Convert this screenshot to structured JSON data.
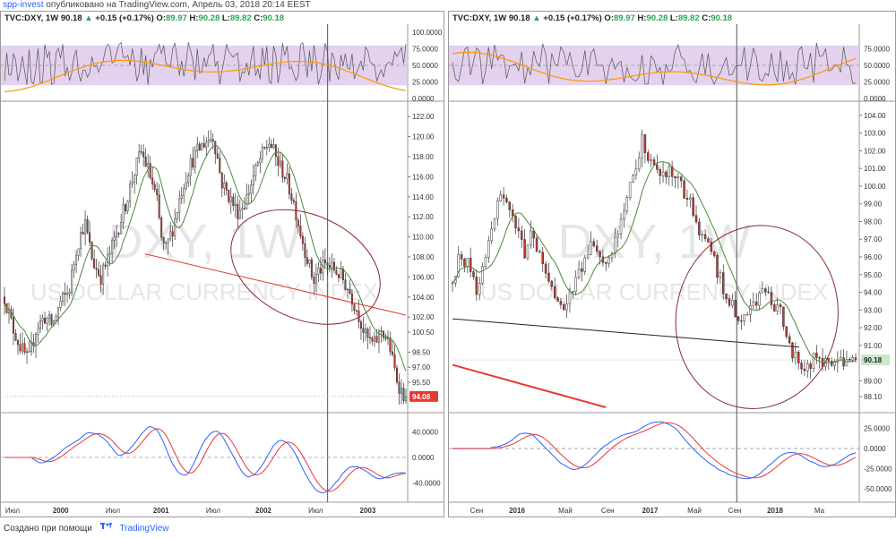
{
  "header": {
    "author": "spp-invest",
    "published": "опубликовано на TradingView.com, Апрель 03, 2018 20:14 EEST"
  },
  "colors": {
    "up": "#ffffff",
    "down": "#c0392b",
    "ma": "#4a8a3a",
    "trendline": "#e53935",
    "ellipse": "#8b2a2a",
    "rsi_band": "#dcc6e8",
    "rsi_line": "#555555",
    "rsi_orange": "#ff9800",
    "macd": "#2962ff",
    "signal": "#e53935",
    "price_label": "#e53935",
    "price_label_right": "#c8e6c9"
  },
  "watermark": {
    "big": "DXY, 1W",
    "small": "US DOLLAR CURRENCY INDEX"
  },
  "footer": {
    "made": "Создано при помощи",
    "brand": "TradingView"
  },
  "chart_data": [
    {
      "id": "left",
      "type": "candlestick",
      "legend": {
        "symbol": "TVC:DXY, 1W",
        "last": "90.18",
        "change": "+0.15 (+0.17%)",
        "o": "89.97",
        "h": "90.28",
        "l": "89.82",
        "c": "90.18"
      },
      "x_ticks": [
        "Июл",
        "2000",
        "Июл",
        "2001",
        "Июл",
        "2002",
        "Июл",
        "2003"
      ],
      "x_tick_pos": [
        0.02,
        0.14,
        0.27,
        0.39,
        0.52,
        0.645,
        0.775,
        0.905
      ],
      "price_ticks": [
        "122.00",
        "120.00",
        "118.00",
        "116.00",
        "114.00",
        "112.00",
        "110.00",
        "108.00",
        "106.00",
        "104.00",
        "102.00",
        "100.50",
        "98.50",
        "97.00",
        "95.50"
      ],
      "price_tick_values": [
        122,
        120,
        118,
        116,
        114,
        112,
        110,
        108,
        106,
        104,
        102,
        100.5,
        98.5,
        97,
        95.5
      ],
      "y_range": [
        93,
        123
      ],
      "last_price_label": "94.08",
      "last_price": 94.08,
      "rsi_ticks": [
        "100.0000",
        "75.0000",
        "50.0000",
        "25.0000",
        "0.0000"
      ],
      "rsi_tick_values": [
        100,
        75,
        50,
        25,
        0
      ],
      "rsi_band": [
        20,
        80
      ],
      "macd_ticks": [
        "40.0000",
        "0.0000",
        "-40.0000"
      ],
      "macd_tick_values": [
        40,
        0,
        -40
      ],
      "macd_range": [
        -65,
        65
      ],
      "close_path": [
        [
          0,
          104
        ],
        [
          0.02,
          101
        ],
        [
          0.04,
          99
        ],
        [
          0.06,
          97.6
        ],
        [
          0.08,
          101
        ],
        [
          0.1,
          102
        ],
        [
          0.12,
          101.2
        ],
        [
          0.14,
          103.5
        ],
        [
          0.16,
          104.5
        ],
        [
          0.18,
          109
        ],
        [
          0.2,
          111.5
        ],
        [
          0.22,
          107.5
        ],
        [
          0.24,
          106
        ],
        [
          0.26,
          108
        ],
        [
          0.28,
          110.5
        ],
        [
          0.3,
          113
        ],
        [
          0.32,
          116
        ],
        [
          0.34,
          118.5
        ],
        [
          0.36,
          116.5
        ],
        [
          0.38,
          113.5
        ],
        [
          0.39,
          110
        ],
        [
          0.4,
          108.5
        ],
        [
          0.42,
          111
        ],
        [
          0.44,
          114.5
        ],
        [
          0.46,
          117
        ],
        [
          0.48,
          118.5
        ],
        [
          0.5,
          119.5
        ],
        [
          0.52,
          120
        ],
        [
          0.53,
          118
        ],
        [
          0.54,
          115.5
        ],
        [
          0.56,
          114
        ],
        [
          0.58,
          112.5
        ],
        [
          0.6,
          113.5
        ],
        [
          0.62,
          116
        ],
        [
          0.64,
          118
        ],
        [
          0.66,
          119.5
        ],
        [
          0.67,
          118.5
        ],
        [
          0.68,
          117.5
        ],
        [
          0.7,
          116
        ],
        [
          0.72,
          113.5
        ],
        [
          0.74,
          110
        ],
        [
          0.76,
          107
        ],
        [
          0.77,
          105.5
        ],
        [
          0.78,
          106.5
        ],
        [
          0.8,
          107.2
        ],
        [
          0.82,
          106.8
        ],
        [
          0.84,
          106
        ],
        [
          0.86,
          104.5
        ],
        [
          0.88,
          102.5
        ],
        [
          0.9,
          100
        ],
        [
          0.92,
          99.2
        ],
        [
          0.94,
          100.8
        ],
        [
          0.96,
          99
        ],
        [
          0.97,
          97
        ],
        [
          0.98,
          95.5
        ],
        [
          0.99,
          94.5
        ],
        [
          1.0,
          94.08
        ]
      ],
      "trendline": [
        [
          0.35,
          108.3
        ],
        [
          1.0,
          102.2
        ]
      ],
      "ellipse": {
        "cx": 0.75,
        "cy": 107,
        "rx": 0.195,
        "ry": 5.2,
        "rotate": 24
      },
      "cursor_x": 0.805
    },
    {
      "id": "right",
      "type": "candlestick",
      "legend": {
        "symbol": "TVC:DXY, 1W",
        "last": "90.18",
        "change": "+0.15 (+0.17%)",
        "o": "89.97",
        "h": "90.28",
        "l": "89.82",
        "c": "90.18"
      },
      "x_ticks": [
        "Сен",
        "2016",
        "Май",
        "Сен",
        "2017",
        "Май",
        "Сен",
        "2018",
        "Ма"
      ],
      "x_tick_pos": [
        0.06,
        0.16,
        0.28,
        0.385,
        0.49,
        0.6,
        0.7,
        0.8,
        0.91
      ],
      "price_ticks": [
        "104.00",
        "103.00",
        "102.00",
        "101.00",
        "100.00",
        "99.00",
        "98.00",
        "97.00",
        "96.00",
        "95.00",
        "94.00",
        "93.00",
        "92.00",
        "91.00",
        "89.00",
        "88.10"
      ],
      "price_tick_values": [
        104,
        103,
        102,
        101,
        100,
        99,
        98,
        97,
        96,
        95,
        94,
        93,
        92,
        91,
        89,
        88.1
      ],
      "y_range": [
        87.5,
        104.5
      ],
      "last_price_label": "90.18",
      "last_price": 90.18,
      "rsi_ticks": [
        "75.0000",
        "50.0000",
        "25.0000",
        "0.0000"
      ],
      "rsi_tick_values": [
        75,
        50,
        25,
        0
      ],
      "rsi_band": [
        20,
        80
      ],
      "macd_ticks": [
        "25.0000",
        "0.0000",
        "-25.0000",
        "-50.0000"
      ],
      "macd_tick_values": [
        25,
        0,
        -25,
        -50
      ],
      "macd_range": [
        -62,
        40
      ],
      "close_path": [
        [
          0,
          94.5
        ],
        [
          0.02,
          96.2
        ],
        [
          0.04,
          95.5
        ],
        [
          0.06,
          94.2
        ],
        [
          0.08,
          95.8
        ],
        [
          0.1,
          98.2
        ],
        [
          0.12,
          99.5
        ],
        [
          0.14,
          98.5
        ],
        [
          0.16,
          97.5
        ],
        [
          0.18,
          96
        ],
        [
          0.2,
          97.5
        ],
        [
          0.22,
          95.5
        ],
        [
          0.24,
          94.5
        ],
        [
          0.26,
          93.8
        ],
        [
          0.28,
          93
        ],
        [
          0.3,
          94.2
        ],
        [
          0.32,
          95.5
        ],
        [
          0.34,
          96.8
        ],
        [
          0.36,
          96.2
        ],
        [
          0.38,
          95.4
        ],
        [
          0.4,
          96.5
        ],
        [
          0.42,
          98
        ],
        [
          0.44,
          100
        ],
        [
          0.46,
          101.5
        ],
        [
          0.47,
          102.8
        ],
        [
          0.48,
          101.8
        ],
        [
          0.5,
          101.2
        ],
        [
          0.52,
          100.4
        ],
        [
          0.54,
          101
        ],
        [
          0.56,
          100.2
        ],
        [
          0.58,
          99.3
        ],
        [
          0.6,
          98.5
        ],
        [
          0.62,
          97.1
        ],
        [
          0.64,
          96.5
        ],
        [
          0.66,
          95
        ],
        [
          0.68,
          93.8
        ],
        [
          0.7,
          93
        ],
        [
          0.72,
          92.6
        ],
        [
          0.74,
          93.2
        ],
        [
          0.76,
          93.7
        ],
        [
          0.78,
          94
        ],
        [
          0.8,
          93.2
        ],
        [
          0.82,
          92.5
        ],
        [
          0.84,
          90.8
        ],
        [
          0.86,
          90.2
        ],
        [
          0.88,
          89.8
        ],
        [
          0.9,
          90.4
        ],
        [
          0.92,
          89.9
        ],
        [
          0.94,
          90.18
        ]
      ],
      "blackline": [
        [
          0.0,
          92.5
        ],
        [
          0.86,
          90.9
        ]
      ],
      "redline": [
        [
          0.0,
          89.9
        ],
        [
          0.38,
          87.5
        ]
      ],
      "ellipse": {
        "cx": 0.755,
        "cy": 92.6,
        "rx": 0.2,
        "ry": 5.2,
        "rotate": 12
      },
      "cursor_x": 0.705
    }
  ]
}
